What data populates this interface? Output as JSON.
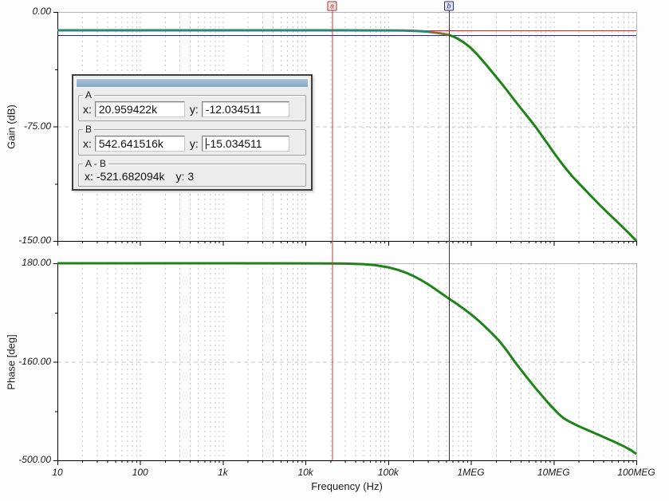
{
  "panel": {
    "x_label": "x:",
    "y_label": "y:",
    "group_a": {
      "label": "A",
      "x": "20.959422k",
      "y": "-12.034511"
    },
    "group_b": {
      "label": "B",
      "x": "542.641516k",
      "y": "-15.034511"
    },
    "group_ab": {
      "label": "A - B",
      "x": "-521.682094k",
      "y": "3"
    }
  },
  "cursors": {
    "a": {
      "letter": "a",
      "freq_hz": 20959.422,
      "gain_db": -12.034511,
      "line_color": "#c03c3c",
      "flag_fill": "#f3e2e2",
      "flag_border": "#a83434"
    },
    "b": {
      "letter": "b",
      "freq_hz": 542641.516,
      "gain_db": -15.034511,
      "line_color": "#2b2b7e",
      "flag_fill": "#e4e4f2",
      "flag_border": "#2b2b7e"
    }
  },
  "colors": {
    "curve_green": "#1e8418",
    "curve_teal": "#2e8674",
    "curve_olive": "#8a7030",
    "grid": "#c6c6c6",
    "frame_gray": "#b6b6b6",
    "axis": "#000000"
  },
  "chart_data": [
    {
      "type": "line",
      "title": "",
      "xlabel": "Frequency (Hz)",
      "ylabel": "Gain (dB)",
      "x_scale": "log",
      "xlim": [
        10,
        100000000
      ],
      "ylim": [
        -150,
        0
      ],
      "grid": "dashed",
      "legend": "none",
      "x_ticks": [
        {
          "exp": 1,
          "label": "10"
        },
        {
          "exp": 2,
          "label": "100"
        },
        {
          "exp": 3,
          "label": "1k"
        },
        {
          "exp": 4,
          "label": "10k"
        },
        {
          "exp": 5,
          "label": "100k"
        },
        {
          "exp": 6,
          "label": "1MEG"
        },
        {
          "exp": 7,
          "label": "10MEG"
        },
        {
          "exp": 8,
          "label": "100MEG"
        }
      ],
      "y_ticks": [
        {
          "value": 0,
          "label": "0.00"
        },
        {
          "value": -75,
          "label": "-75.00"
        },
        {
          "value": -150,
          "label": "-150.00"
        }
      ],
      "y_minor": [
        -37.5,
        -112.5
      ],
      "y_grid_dashed": [
        -75
      ],
      "series": [
        {
          "name": "gain",
          "segments": [
            {
              "max_freq": 330000,
              "color": "#2e8674"
            },
            {
              "max_freq": 542641.516,
              "color": "#8a7030"
            },
            {
              "max_freq": 100000000,
              "color": "#1e8418"
            }
          ],
          "points": [
            [
              10,
              -12.034
            ],
            [
              100,
              -12.034
            ],
            [
              1000,
              -12.034
            ],
            [
              10000,
              -12.034
            ],
            [
              30000,
              -12.04
            ],
            [
              60000,
              -12.05
            ],
            [
              100000,
              -12.08
            ],
            [
              150000,
              -12.17
            ],
            [
              200000,
              -12.33
            ],
            [
              250000,
              -12.6
            ],
            [
              300000,
              -12.93
            ],
            [
              330000,
              -13.15
            ],
            [
              380000,
              -13.6
            ],
            [
              430000,
              -14.05
            ],
            [
              480000,
              -14.5
            ],
            [
              542641.516,
              -15.034
            ],
            [
              620000,
              -16.2
            ],
            [
              700000,
              -17.6
            ],
            [
              800000,
              -19.6
            ],
            [
              900000,
              -21.6
            ],
            [
              1000000,
              -23.7
            ],
            [
              1200000,
              -28
            ],
            [
              1500000,
              -34
            ],
            [
              1800000,
              -39.2
            ],
            [
              2200000,
              -45
            ],
            [
              2700000,
              -51
            ],
            [
              3300000,
              -57.2
            ],
            [
              4000000,
              -63
            ],
            [
              5000000,
              -69.5
            ],
            [
              6000000,
              -75
            ],
            [
              7000000,
              -80
            ],
            [
              8500000,
              -86.5
            ],
            [
              10000000,
              -92
            ],
            [
              12000000,
              -97.8
            ],
            [
              14000000,
              -102.5
            ],
            [
              17000000,
              -108
            ],
            [
              20000000,
              -112
            ],
            [
              25000000,
              -117.5
            ],
            [
              30000000,
              -122
            ],
            [
              37000000,
              -127
            ],
            [
              45000000,
              -131.5
            ],
            [
              55000000,
              -136
            ],
            [
              70000000,
              -141.5
            ],
            [
              85000000,
              -146
            ],
            [
              100000000,
              -150
            ]
          ]
        }
      ],
      "cursor_hlines": [
        {
          "value": -12.034511,
          "color": "#c03c3c"
        },
        {
          "value": -15.034511,
          "color": "#2b2b7e"
        }
      ]
    },
    {
      "type": "line",
      "title": "",
      "xlabel": "Frequency (Hz)",
      "ylabel": "Phase [deg]",
      "x_scale": "log",
      "xlim": [
        10,
        100000000
      ],
      "ylim": [
        -500,
        180
      ],
      "grid": "dashed",
      "legend": "none",
      "x_ticks": [
        {
          "exp": 1,
          "label": "10"
        },
        {
          "exp": 2,
          "label": "100"
        },
        {
          "exp": 3,
          "label": "1k"
        },
        {
          "exp": 4,
          "label": "10k"
        },
        {
          "exp": 5,
          "label": "100k"
        },
        {
          "exp": 6,
          "label": "1MEG"
        },
        {
          "exp": 7,
          "label": "10MEG"
        },
        {
          "exp": 8,
          "label": "100MEG"
        }
      ],
      "y_ticks": [
        {
          "value": 180,
          "label": "180.00"
        },
        {
          "value": -160,
          "label": "-160.00"
        },
        {
          "value": -500,
          "label": "-500.00"
        }
      ],
      "y_minor": [
        10,
        -330
      ],
      "y_grid_dashed": [
        -160
      ],
      "series": [
        {
          "name": "phase",
          "segments": [
            {
              "max_freq": 100000000,
              "color": "#1e8418"
            }
          ],
          "points": [
            [
              10,
              180
            ],
            [
              1000,
              180
            ],
            [
              10000,
              179.8
            ],
            [
              20000,
              179.4
            ],
            [
              30000,
              178.8
            ],
            [
              50000,
              177
            ],
            [
              70000,
              173.5
            ],
            [
              100000,
              166
            ],
            [
              130000,
              157.5
            ],
            [
              160000,
              148.5
            ],
            [
              200000,
              136.5
            ],
            [
              250000,
              122
            ],
            [
              300000,
              108.5
            ],
            [
              370000,
              91
            ],
            [
              450000,
              74
            ],
            [
              542641.516,
              58
            ],
            [
              650000,
              43
            ],
            [
              800000,
              25
            ],
            [
              1000000,
              4
            ],
            [
              1250000,
              -19
            ],
            [
              1500000,
              -40
            ],
            [
              1800000,
              -62
            ],
            [
              2200000,
              -88
            ],
            [
              2700000,
              -120
            ],
            [
              3200000,
              -150
            ],
            [
              3600000,
              -170
            ],
            [
              4200000,
              -194
            ],
            [
              5000000,
              -222
            ],
            [
              6000000,
              -250
            ],
            [
              7500000,
              -282
            ],
            [
              9000000,
              -308
            ],
            [
              10000000,
              -322
            ],
            [
              11500000,
              -340
            ],
            [
              13000000,
              -353
            ],
            [
              15000000,
              -364
            ],
            [
              17000000,
              -372
            ],
            [
              20000000,
              -382
            ],
            [
              25000000,
              -394
            ],
            [
              30000000,
              -404
            ],
            [
              37000000,
              -415
            ],
            [
              45000000,
              -426
            ],
            [
              55000000,
              -437
            ],
            [
              70000000,
              -451
            ],
            [
              85000000,
              -464
            ],
            [
              100000000,
              -478
            ]
          ]
        }
      ],
      "cursor_hlines": []
    }
  ]
}
